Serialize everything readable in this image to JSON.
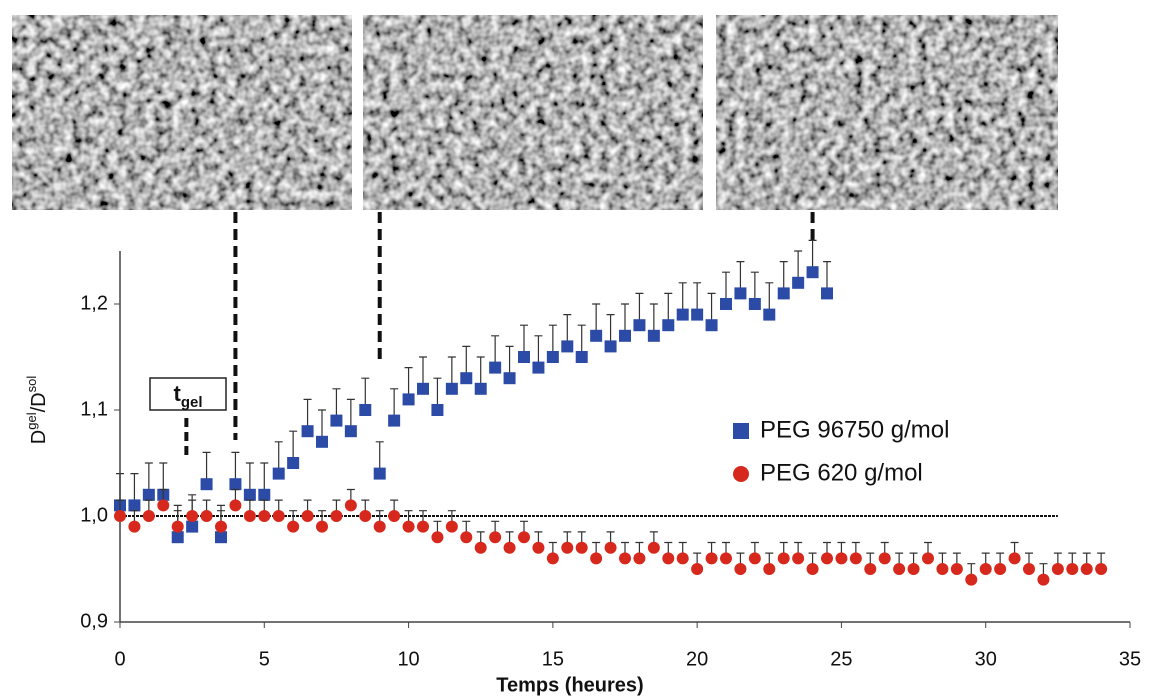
{
  "chart_data": {
    "type": "scatter",
    "xlabel": "Temps (heures)",
    "ylabel": [
      {
        "text": "D"
      },
      {
        "text": "gel",
        "sup": true
      },
      {
        "text": "/D"
      },
      {
        "text": "sol",
        "sup": true
      }
    ],
    "annotation": [
      {
        "text": "t"
      },
      {
        "text": "gel",
        "sub": true
      }
    ],
    "annotation_x": 2.3,
    "sem_markers_x": [
      4.0,
      9.0,
      24.0
    ],
    "xlim": [
      0,
      35
    ],
    "xticks": [
      0,
      5,
      10,
      15,
      20,
      25,
      30,
      35
    ],
    "ylim": [
      0.9,
      1.25
    ],
    "yticks": [
      {
        "value": 0.9,
        "label": "0,9"
      },
      {
        "value": 1.0,
        "label": "1,0"
      },
      {
        "value": 1.1,
        "label": "1,1"
      },
      {
        "value": 1.2,
        "label": "1,2"
      }
    ],
    "reference_line": {
      "y": 1.0,
      "x_end": 32.5
    },
    "series": [
      {
        "name": "PEG 96750 g/mol",
        "color": "#2b4ba6",
        "marker": "square",
        "error": 0.03,
        "x": [
          0,
          0.5,
          1,
          1.5,
          2,
          2.5,
          3,
          3.5,
          4,
          4.5,
          5,
          5.5,
          6,
          6.5,
          7,
          7.5,
          8,
          8.5,
          9,
          9.5,
          10,
          10.5,
          11,
          11.5,
          12,
          12.5,
          13,
          13.5,
          14,
          14.5,
          15,
          15.5,
          16,
          16.5,
          17,
          17.5,
          18,
          18.5,
          19,
          19.5,
          20,
          20.5,
          21,
          21.5,
          22,
          22.5,
          23,
          23.5,
          24,
          24.5
        ],
        "values": [
          1.01,
          1.01,
          1.02,
          1.02,
          0.98,
          0.99,
          1.03,
          0.98,
          1.03,
          1.02,
          1.02,
          1.04,
          1.05,
          1.08,
          1.07,
          1.09,
          1.08,
          1.1,
          1.04,
          1.09,
          1.11,
          1.12,
          1.1,
          1.12,
          1.13,
          1.12,
          1.14,
          1.13,
          1.15,
          1.14,
          1.15,
          1.16,
          1.15,
          1.17,
          1.16,
          1.17,
          1.18,
          1.17,
          1.18,
          1.19,
          1.19,
          1.18,
          1.2,
          1.21,
          1.2,
          1.19,
          1.21,
          1.22,
          1.23,
          1.21
        ]
      },
      {
        "name": "PEG 620 g/mol",
        "color": "#d6281c",
        "marker": "circle",
        "error": 0.015,
        "x": [
          0,
          0.5,
          1,
          1.5,
          2,
          2.5,
          3,
          3.5,
          4,
          4.5,
          5,
          5.5,
          6,
          6.5,
          7,
          7.5,
          8,
          8.5,
          9,
          9.5,
          10,
          10.5,
          11,
          11.5,
          12,
          12.5,
          13,
          13.5,
          14,
          14.5,
          15,
          15.5,
          16,
          16.5,
          17,
          17.5,
          18,
          18.5,
          19,
          19.5,
          20,
          20.5,
          21,
          21.5,
          22,
          22.5,
          23,
          23.5,
          24,
          24.5,
          25,
          25.5,
          26,
          26.5,
          27,
          27.5,
          28,
          28.5,
          29,
          29.5,
          30,
          30.5,
          31,
          31.5,
          32,
          32.5,
          33,
          33.5,
          34
        ],
        "values": [
          1.0,
          0.99,
          1.0,
          1.01,
          0.99,
          1.0,
          1.0,
          0.99,
          1.01,
          1.0,
          1.0,
          1.0,
          0.99,
          1.0,
          0.99,
          1.0,
          1.01,
          1.0,
          0.99,
          1.0,
          0.99,
          0.99,
          0.98,
          0.99,
          0.98,
          0.97,
          0.98,
          0.97,
          0.98,
          0.97,
          0.96,
          0.97,
          0.97,
          0.96,
          0.97,
          0.96,
          0.96,
          0.97,
          0.96,
          0.96,
          0.95,
          0.96,
          0.96,
          0.95,
          0.96,
          0.95,
          0.96,
          0.96,
          0.95,
          0.96,
          0.96,
          0.96,
          0.95,
          0.96,
          0.95,
          0.95,
          0.96,
          0.95,
          0.95,
          0.94,
          0.95,
          0.95,
          0.96,
          0.95,
          0.94,
          0.95,
          0.95,
          0.95,
          0.95
        ]
      }
    ]
  }
}
